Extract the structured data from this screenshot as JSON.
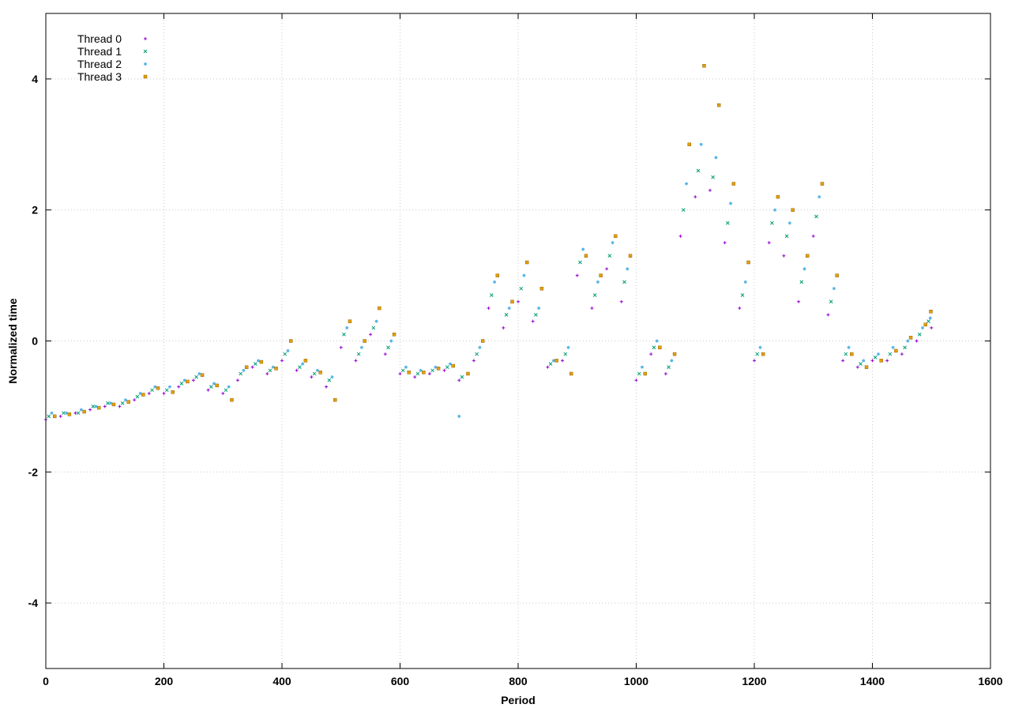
{
  "chart_data": {
    "type": "scatter",
    "title": "",
    "xlabel": "Period",
    "ylabel": "Normalized time",
    "xlim": [
      0,
      1600
    ],
    "ylim": [
      -5,
      5
    ],
    "xticks": [
      0,
      200,
      400,
      600,
      800,
      1000,
      1200,
      1400,
      1600
    ],
    "yticks": [
      -4,
      -2,
      0,
      2,
      4
    ],
    "grid": true,
    "legend_position": "top-left",
    "series": [
      {
        "name": "Thread 0",
        "color": "#9400d3",
        "marker": "plus",
        "x": [
          0,
          25,
          50,
          75,
          100,
          125,
          150,
          175,
          200,
          225,
          250,
          275,
          300,
          325,
          350,
          375,
          400,
          425,
          450,
          475,
          500,
          525,
          550,
          575,
          600,
          625,
          650,
          675,
          700,
          725,
          750,
          775,
          800,
          825,
          850,
          875,
          900,
          925,
          950,
          975,
          1000,
          1025,
          1050,
          1075,
          1100,
          1125,
          1150,
          1175,
          1200,
          1225,
          1250,
          1275,
          1300,
          1325,
          1350,
          1375,
          1400,
          1425,
          1450,
          1475,
          1500
        ],
        "y": [
          -1.2,
          -1.15,
          -1.1,
          -1.05,
          -1.0,
          -1.0,
          -0.9,
          -0.8,
          -0.8,
          -0.7,
          -0.6,
          -0.75,
          -0.8,
          -0.6,
          -0.4,
          -0.5,
          -0.3,
          -0.45,
          -0.55,
          -0.7,
          -0.1,
          -0.3,
          0.1,
          -0.2,
          -0.5,
          -0.55,
          -0.5,
          -0.45,
          -0.6,
          -0.3,
          0.5,
          0.2,
          0.6,
          0.3,
          -0.4,
          -0.3,
          1.0,
          0.5,
          1.1,
          0.6,
          -0.6,
          -0.2,
          -0.5,
          1.6,
          2.2,
          2.3,
          1.5,
          0.5,
          -0.3,
          1.5,
          1.3,
          0.6,
          1.6,
          0.4,
          -0.3,
          -0.4,
          -0.3,
          -0.3,
          -0.2,
          0.0,
          0.2
        ]
      },
      {
        "name": "Thread 1",
        "color": "#009e73",
        "marker": "cross",
        "x": [
          5,
          30,
          55,
          80,
          105,
          130,
          155,
          180,
          205,
          230,
          255,
          280,
          305,
          330,
          355,
          380,
          405,
          430,
          455,
          480,
          505,
          530,
          555,
          580,
          605,
          630,
          655,
          680,
          705,
          730,
          755,
          780,
          805,
          830,
          855,
          880,
          905,
          930,
          955,
          980,
          1005,
          1030,
          1055,
          1080,
          1105,
          1130,
          1155,
          1180,
          1205,
          1230,
          1255,
          1280,
          1305,
          1330,
          1355,
          1380,
          1405,
          1430,
          1455,
          1480,
          1495
        ],
        "y": [
          -1.15,
          -1.1,
          -1.1,
          -1.0,
          -0.95,
          -0.95,
          -0.85,
          -0.75,
          -0.75,
          -0.65,
          -0.55,
          -0.7,
          -0.75,
          -0.5,
          -0.35,
          -0.45,
          -0.2,
          -0.4,
          -0.5,
          -0.6,
          0.1,
          -0.2,
          0.2,
          -0.1,
          -0.45,
          -0.5,
          -0.45,
          -0.4,
          -0.55,
          -0.2,
          0.7,
          0.4,
          0.8,
          0.4,
          -0.35,
          -0.2,
          1.2,
          0.7,
          1.3,
          0.9,
          -0.5,
          -0.1,
          -0.4,
          2.0,
          2.6,
          2.5,
          1.8,
          0.7,
          -0.2,
          1.8,
          1.6,
          0.9,
          1.9,
          0.6,
          -0.2,
          -0.35,
          -0.25,
          -0.2,
          -0.1,
          0.1,
          0.3
        ]
      },
      {
        "name": "Thread 2",
        "color": "#56b4e9",
        "marker": "star",
        "x": [
          10,
          35,
          60,
          85,
          110,
          135,
          160,
          185,
          210,
          235,
          260,
          285,
          310,
          335,
          360,
          385,
          410,
          435,
          460,
          485,
          510,
          535,
          560,
          585,
          610,
          635,
          660,
          685,
          700,
          735,
          760,
          785,
          810,
          835,
          860,
          885,
          910,
          935,
          960,
          985,
          1010,
          1035,
          1060,
          1085,
          1110,
          1135,
          1160,
          1185,
          1210,
          1235,
          1260,
          1285,
          1310,
          1335,
          1360,
          1385,
          1410,
          1435,
          1460,
          1485,
          1498
        ],
        "y": [
          -1.1,
          -1.1,
          -1.05,
          -1.0,
          -0.95,
          -0.9,
          -0.8,
          -0.7,
          -0.7,
          -0.6,
          -0.5,
          -0.65,
          -0.7,
          -0.45,
          -0.3,
          -0.4,
          -0.15,
          -0.35,
          -0.45,
          -0.55,
          0.2,
          -0.1,
          0.3,
          0.0,
          -0.4,
          -0.45,
          -0.4,
          -0.35,
          -1.15,
          -0.1,
          0.9,
          0.5,
          1.0,
          0.5,
          -0.3,
          -0.1,
          1.4,
          0.9,
          1.5,
          1.1,
          -0.4,
          0.0,
          -0.3,
          2.4,
          3.0,
          2.8,
          2.1,
          0.9,
          -0.1,
          2.0,
          1.8,
          1.1,
          2.2,
          0.8,
          -0.1,
          -0.3,
          -0.2,
          -0.1,
          0.0,
          0.2,
          0.35
        ]
      },
      {
        "name": "Thread 3",
        "color": "#e69f00",
        "marker": "square",
        "x": [
          15,
          40,
          65,
          90,
          115,
          140,
          165,
          190,
          215,
          240,
          265,
          290,
          315,
          340,
          365,
          390,
          415,
          440,
          465,
          490,
          515,
          540,
          565,
          590,
          615,
          640,
          665,
          690,
          715,
          740,
          765,
          790,
          815,
          840,
          865,
          890,
          915,
          940,
          965,
          990,
          1015,
          1040,
          1065,
          1090,
          1115,
          1140,
          1165,
          1190,
          1215,
          1240,
          1265,
          1290,
          1315,
          1340,
          1365,
          1390,
          1415,
          1440,
          1465,
          1490,
          1499
        ],
        "y": [
          -1.15,
          -1.12,
          -1.08,
          -1.02,
          -0.97,
          -0.93,
          -0.82,
          -0.72,
          -0.78,
          -0.62,
          -0.52,
          -0.68,
          -0.9,
          -0.4,
          -0.32,
          -0.42,
          0.0,
          -0.3,
          -0.48,
          -0.9,
          0.3,
          0.0,
          0.5,
          0.1,
          -0.48,
          -0.48,
          -0.42,
          -0.38,
          -0.5,
          0.0,
          1.0,
          0.6,
          1.2,
          0.8,
          -0.3,
          -0.5,
          1.3,
          1.0,
          1.6,
          1.3,
          -0.5,
          -0.1,
          -0.2,
          3.0,
          4.2,
          3.6,
          2.4,
          1.2,
          -0.2,
          2.2,
          2.0,
          1.3,
          2.4,
          1.0,
          -0.2,
          -0.4,
          -0.3,
          -0.15,
          0.05,
          0.25,
          0.45
        ]
      }
    ]
  }
}
